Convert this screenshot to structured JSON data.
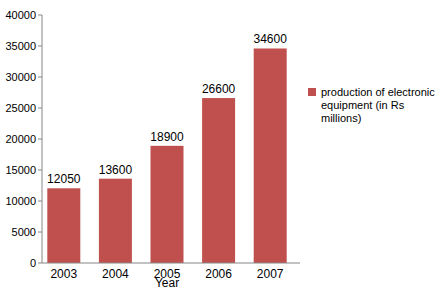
{
  "chart_data": {
    "type": "bar",
    "x_label": "Year",
    "categories": [
      "2003",
      "2004",
      "2005",
      "2006",
      "2007"
    ],
    "series": [
      {
        "name": "production of electronic equipment (in Rs millions)",
        "color": "#c0504d",
        "values": [
          12050,
          13600,
          18900,
          26600,
          34600
        ]
      }
    ],
    "ylim": [
      0,
      40000
    ],
    "yticks": [
      0,
      5000,
      10000,
      15000,
      20000,
      25000,
      30000,
      35000,
      40000
    ],
    "data_labels": true,
    "legend": "right",
    "grid": false
  }
}
